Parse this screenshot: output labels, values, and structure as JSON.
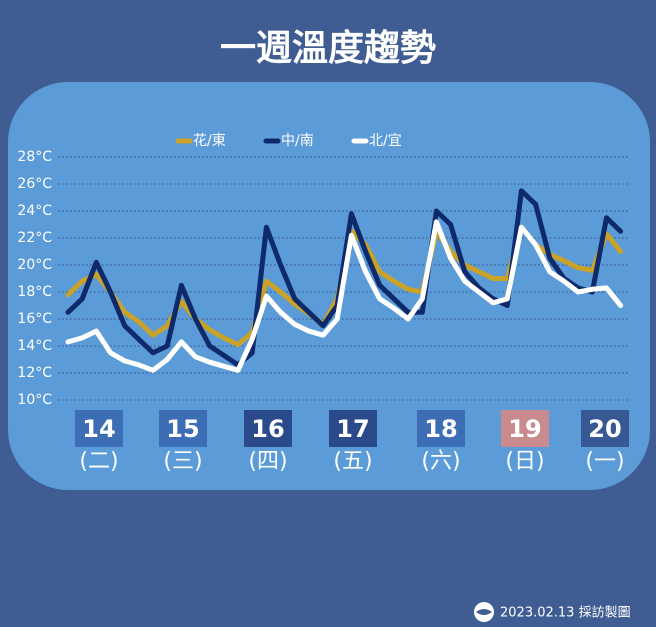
{
  "chart_data": {
    "type": "line",
    "title": "一週溫度趨勢",
    "ylim": [
      10,
      28
    ],
    "yticks": [
      {
        "value": 10,
        "label": "10°C"
      },
      {
        "value": 12,
        "label": "12°C"
      },
      {
        "value": 14,
        "label": "14°C"
      },
      {
        "value": 16,
        "label": "16°C"
      },
      {
        "value": 18,
        "label": "18°C"
      },
      {
        "value": 20,
        "label": "20°C"
      },
      {
        "value": 22,
        "label": "22°C"
      },
      {
        "value": 24,
        "label": "24°C"
      },
      {
        "value": 26,
        "label": "26°C"
      },
      {
        "value": 28,
        "label": "28°C"
      }
    ],
    "grid": true,
    "days": [
      {
        "date": "14",
        "weekday": "(二)",
        "color": "#3d6db4"
      },
      {
        "date": "15",
        "weekday": "(三)",
        "color": "#3d6db4"
      },
      {
        "date": "16",
        "weekday": "(四)",
        "color": "#2a4a8c"
      },
      {
        "date": "17",
        "weekday": "(五)",
        "color": "#2a4a8c"
      },
      {
        "date": "18",
        "weekday": "(六)",
        "color": "#3d6db4"
      },
      {
        "date": "19",
        "weekday": "(日)",
        "color": "#c98b8e"
      },
      {
        "date": "20",
        "weekday": "(一)",
        "color": "#385893"
      }
    ],
    "series": [
      {
        "name": "花/東",
        "color": "#c9a227",
        "values": [
          17.8,
          18.8,
          19.3,
          18,
          16.5,
          15.8,
          14.8,
          15.5,
          17.3,
          16,
          15.2,
          14.6,
          14.1,
          15,
          18.8,
          18,
          17.1,
          16.4,
          15.6,
          17.5,
          22.5,
          21.5,
          19.5,
          18.8,
          18.2,
          18,
          22.5,
          21,
          20,
          19.5,
          19,
          19,
          22.8,
          21.5,
          20.8,
          20.3,
          19.8,
          19.6,
          22.3,
          21
        ]
      },
      {
        "name": "中/南",
        "color": "#0f2a6b",
        "values": [
          16.5,
          17.5,
          20.2,
          18,
          15.5,
          14.5,
          13.5,
          14,
          18.5,
          16,
          14,
          13.3,
          12.6,
          13.5,
          22.8,
          20,
          17.5,
          16.5,
          15.5,
          17,
          23.8,
          21,
          18.5,
          17.5,
          16.5,
          16.5,
          24,
          23,
          19.5,
          18.3,
          17.5,
          17,
          25.5,
          24.5,
          20.5,
          19,
          18.3,
          18,
          23.5,
          22.5
        ]
      },
      {
        "name": "北/宜",
        "color": "#ffffff",
        "values": [
          14.3,
          14.6,
          15.1,
          13.5,
          12.9,
          12.6,
          12.2,
          13,
          14.3,
          13.2,
          12.8,
          12.5,
          12.2,
          14.5,
          17.7,
          16.5,
          15.6,
          15.1,
          14.8,
          16,
          22.2,
          19.5,
          17.5,
          16.8,
          16,
          17.5,
          23.2,
          20.5,
          18.8,
          18,
          17.2,
          17.5,
          22.8,
          21.5,
          19.5,
          18.8,
          18,
          18.2,
          18.3,
          17
        ]
      }
    ]
  },
  "footer": "2023.02.13 採訪製圖"
}
